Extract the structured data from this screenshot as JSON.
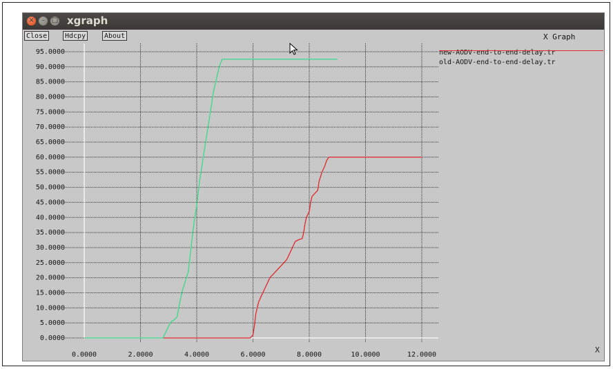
{
  "window": {
    "title": "xgraph",
    "graph_title": "X Graph",
    "x_mark": "X"
  },
  "toolbar": {
    "close_label": "Close",
    "hdcpy_label": "Hdcpy",
    "about_label": "About"
  },
  "chart_data": {
    "type": "line",
    "title": "X Graph",
    "xlabel": "",
    "ylabel": "",
    "xlim": [
      0,
      12
    ],
    "ylim": [
      0,
      95
    ],
    "grid": true,
    "legend": "top-right",
    "x_ticks": [
      "0.0000",
      "2.0000",
      "4.0000",
      "6.0000",
      "8.0000",
      "10.0000",
      "12.0000"
    ],
    "y_ticks": [
      "0.0000",
      "5.0000",
      "10.0000",
      "15.0000",
      "20.0000",
      "25.0000",
      "30.0000",
      "35.0000",
      "40.0000",
      "45.0000",
      "50.0000",
      "55.0000",
      "60.0000",
      "65.0000",
      "70.0000",
      "75.0000",
      "80.0000",
      "85.0000",
      "90.0000",
      "95.0000"
    ],
    "series": [
      {
        "name": "new-AODV-end-to-end-delay.tr",
        "color": "#e0272b",
        "points": [
          [
            2.8,
            0
          ],
          [
            5.9,
            0
          ],
          [
            6.0,
            1
          ],
          [
            6.05,
            4
          ],
          [
            6.1,
            8
          ],
          [
            6.15,
            10
          ],
          [
            6.2,
            12
          ],
          [
            6.3,
            14
          ],
          [
            6.4,
            16
          ],
          [
            6.5,
            18
          ],
          [
            6.6,
            20
          ],
          [
            6.7,
            21
          ],
          [
            6.8,
            22
          ],
          [
            6.9,
            23
          ],
          [
            7.0,
            24
          ],
          [
            7.1,
            25
          ],
          [
            7.2,
            26
          ],
          [
            7.3,
            28
          ],
          [
            7.4,
            30
          ],
          [
            7.5,
            32
          ],
          [
            7.6,
            32.5
          ],
          [
            7.75,
            33
          ],
          [
            7.8,
            35
          ],
          [
            7.85,
            38
          ],
          [
            7.9,
            40
          ],
          [
            8.0,
            42
          ],
          [
            8.05,
            45
          ],
          [
            8.1,
            47
          ],
          [
            8.2,
            48
          ],
          [
            8.3,
            49
          ],
          [
            8.35,
            52
          ],
          [
            8.45,
            55
          ],
          [
            8.55,
            57
          ],
          [
            8.62,
            59
          ],
          [
            8.7,
            60
          ],
          [
            12.0,
            60
          ]
        ]
      },
      {
        "name": "old-AODV-end-to-end-delay.tr",
        "color": "#39d98a",
        "points": [
          [
            0,
            0
          ],
          [
            2.8,
            0
          ],
          [
            2.9,
            2
          ],
          [
            3.0,
            4
          ],
          [
            3.1,
            5.5
          ],
          [
            3.2,
            6
          ],
          [
            3.3,
            7
          ],
          [
            3.4,
            12
          ],
          [
            3.5,
            16
          ],
          [
            3.6,
            19
          ],
          [
            3.7,
            22
          ],
          [
            3.8,
            30
          ],
          [
            3.9,
            38
          ],
          [
            4.0,
            44
          ],
          [
            4.1,
            52
          ],
          [
            4.2,
            58
          ],
          [
            4.3,
            64
          ],
          [
            4.4,
            70
          ],
          [
            4.5,
            76
          ],
          [
            4.6,
            82
          ],
          [
            4.7,
            86
          ],
          [
            4.8,
            90
          ],
          [
            4.9,
            92.5
          ],
          [
            9.0,
            92.5
          ]
        ]
      }
    ]
  }
}
